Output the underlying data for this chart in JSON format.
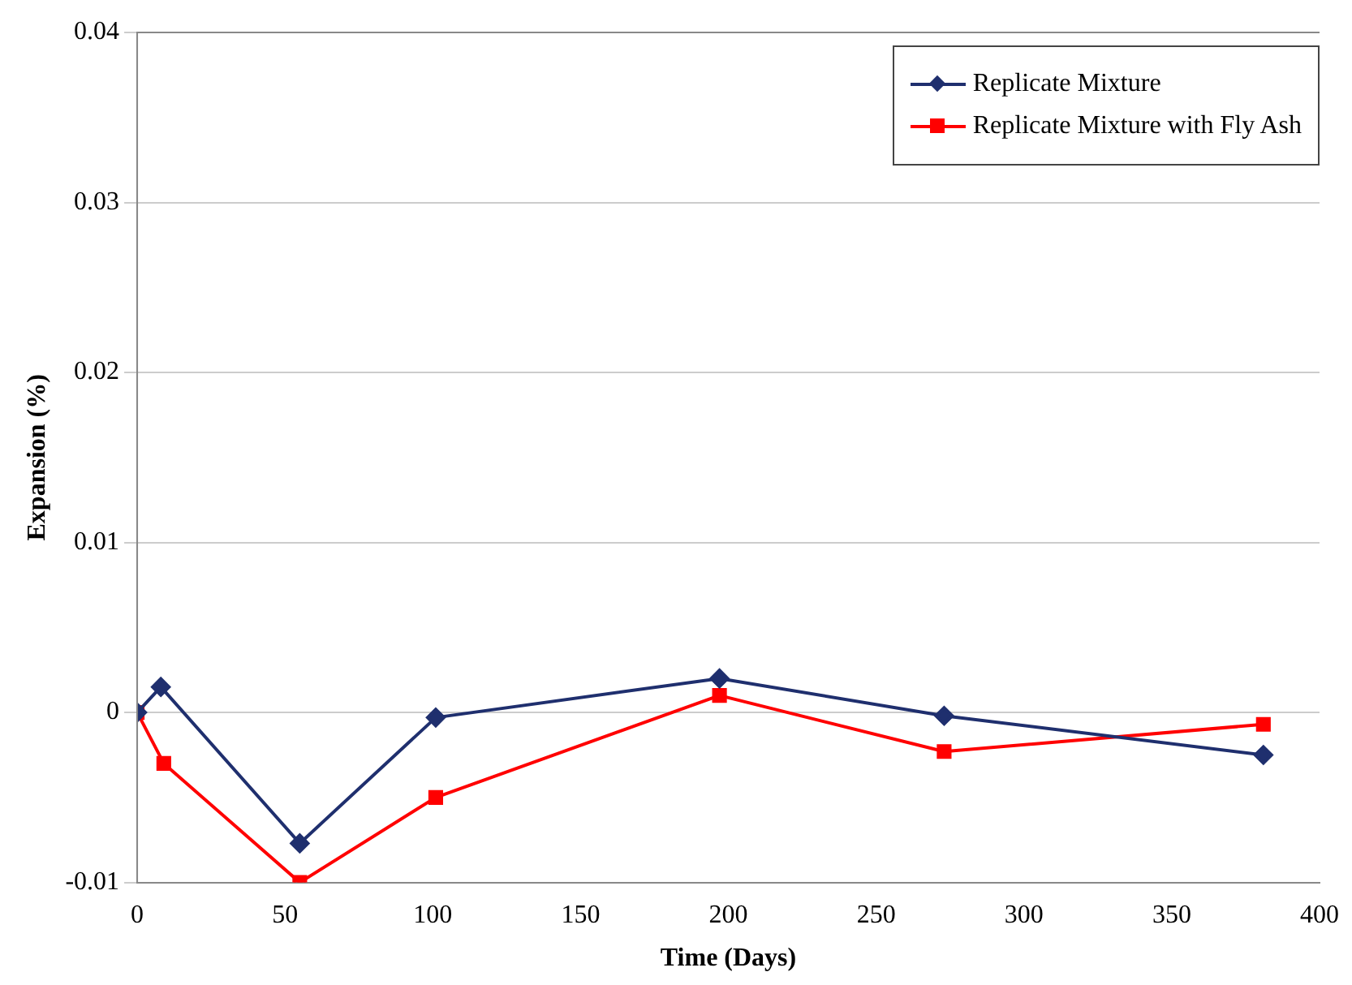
{
  "chart_data": {
    "type": "line",
    "xlabel": "Time (Days)",
    "ylabel": "Expansion (%)",
    "xlim": [
      0,
      400
    ],
    "xticks": [
      0,
      50,
      100,
      150,
      200,
      250,
      300,
      350,
      400
    ],
    "ylim": [
      -0.01,
      0.04
    ],
    "yticks": [
      -0.01,
      0,
      0.01,
      0.02,
      0.03,
      0.04
    ],
    "grid": "y",
    "legend": "top right",
    "line_style": "solid",
    "series": [
      {
        "name": "Replicate Mixture",
        "color": "#1f2f6e",
        "marker": "diamond",
        "x": [
          0,
          8,
          55,
          101,
          197,
          273,
          381
        ],
        "values": [
          0,
          0.0015,
          -0.0077,
          -0.0003,
          0.002,
          -0.0002,
          -0.0025
        ]
      },
      {
        "name": "Replicate Mixture with Fly Ash",
        "color": "#ff0000",
        "marker": "square",
        "x": [
          0,
          9,
          55,
          101,
          197,
          273,
          381
        ],
        "values": [
          0,
          -0.003,
          -0.01,
          -0.005,
          0.001,
          -0.0023,
          -0.0007
        ]
      }
    ]
  }
}
